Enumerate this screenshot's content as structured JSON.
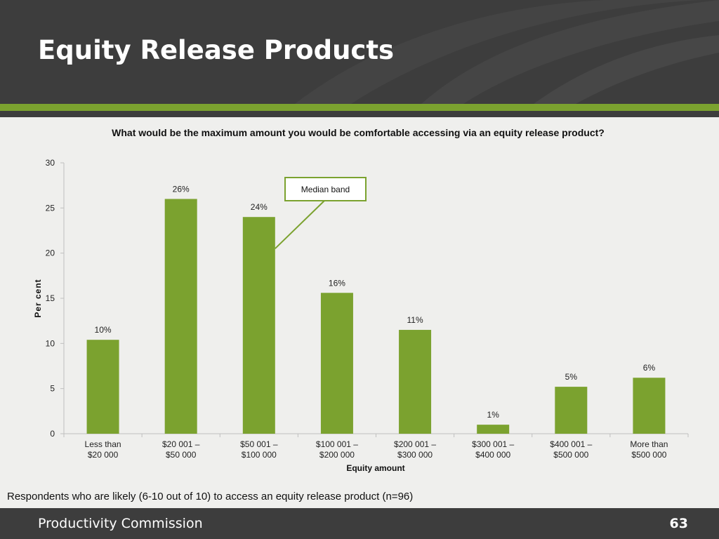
{
  "slide": {
    "title": "Equity Release Products",
    "footnote": "Respondents who are likely (6-10 out of 10) to access an equity release product (n=96)",
    "footer_org": "Productivity Commission",
    "page_number": "63"
  },
  "colors": {
    "bar": "#7ba22f",
    "header_bg": "#3d3d3d",
    "accent": "#7ba22f"
  },
  "chart_data": {
    "type": "bar",
    "title": "What would be the maximum amount you would be comfortable accessing via an equity release product?",
    "xlabel": "Equity amount",
    "ylabel": "Per cent",
    "ylim": [
      0,
      30
    ],
    "yticks": [
      0,
      5,
      10,
      15,
      20,
      25,
      30
    ],
    "categories": [
      [
        "Less than",
        "$20 000"
      ],
      [
        "$20 001 –",
        "$50 000"
      ],
      [
        "$50 001 –",
        "$100 000"
      ],
      [
        "$100 001 –",
        "$200 000"
      ],
      [
        "$200 001 –",
        "$300 000"
      ],
      [
        "$300 001 –",
        "$400 000"
      ],
      [
        "$400 001 –",
        "$500 000"
      ],
      [
        "More than",
        "$500 000"
      ]
    ],
    "values": [
      10.4,
      26,
      24,
      15.6,
      11.5,
      1,
      5.2,
      6.2
    ],
    "data_labels": [
      "10%",
      "26%",
      "24%",
      "16%",
      "11%",
      "1%",
      "5%",
      "6%"
    ],
    "grid": false,
    "annotation": {
      "text": "Median band",
      "target_index": 2
    }
  }
}
